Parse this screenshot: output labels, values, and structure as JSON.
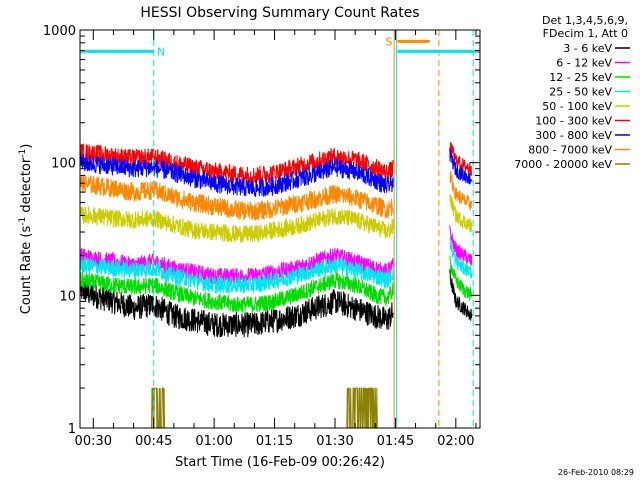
{
  "chart_data": {
    "type": "line",
    "title": "HESSI Observing Summary Count Rates",
    "xlabel": "Start Time (16-Feb-09 00:26:42)",
    "ylabel_main": "Count Rate (s",
    "ylabel_sup1": "-1",
    "ylabel_mid": " detector",
    "ylabel_sup2": "-1",
    "ylabel_end": ")",
    "y_scale": "log",
    "ylim": [
      1,
      1000
    ],
    "xlim_minutes": [
      26.7,
      126.0
    ],
    "x_ticks": [
      {
        "label": "00:30",
        "minutes": 30
      },
      {
        "label": "00:45",
        "minutes": 45
      },
      {
        "label": "01:00",
        "minutes": 60
      },
      {
        "label": "01:15",
        "minutes": 75
      },
      {
        "label": "01:30",
        "minutes": 90
      },
      {
        "label": "01:45",
        "minutes": 105
      },
      {
        "label": "02:00",
        "minutes": 120
      }
    ],
    "y_ticks": [
      {
        "label": "1",
        "value": 1
      },
      {
        "label": "10",
        "value": 10
      },
      {
        "label": "100",
        "value": 100
      },
      {
        "label": "1000",
        "value": 1000
      }
    ],
    "legend_header": [
      "Det 1,3,4,5,6,9,",
      "FDecim 1, Att 0"
    ],
    "legend_position": "top-right, outside plot",
    "series": [
      {
        "name": "3 - 6 keV",
        "color": "#000000",
        "profile": [
          [
            26.7,
            11
          ],
          [
            30,
            10
          ],
          [
            35,
            9
          ],
          [
            40,
            8
          ],
          [
            45,
            8.5
          ],
          [
            50,
            7
          ],
          [
            55,
            6.5
          ],
          [
            60,
            6
          ],
          [
            65,
            6
          ],
          [
            70,
            6
          ],
          [
            75,
            6.5
          ],
          [
            80,
            7
          ],
          [
            85,
            8
          ],
          [
            90,
            9
          ],
          [
            95,
            8
          ],
          [
            100,
            7
          ],
          [
            103,
            6.5
          ],
          [
            104.5,
            7.5
          ]
        ],
        "post": [
          [
            118.5,
            14
          ],
          [
            120,
            9
          ],
          [
            122,
            8
          ],
          [
            124,
            7
          ]
        ]
      },
      {
        "name": "6 - 12 keV",
        "color": "#ff00ff",
        "profile": [
          [
            26.7,
            20
          ],
          [
            30,
            19
          ],
          [
            35,
            18
          ],
          [
            40,
            17
          ],
          [
            45,
            18
          ],
          [
            50,
            16
          ],
          [
            55,
            15
          ],
          [
            60,
            14
          ],
          [
            65,
            14
          ],
          [
            70,
            14
          ],
          [
            75,
            15
          ],
          [
            80,
            16
          ],
          [
            85,
            18
          ],
          [
            90,
            20
          ],
          [
            95,
            18
          ],
          [
            100,
            16
          ],
          [
            103,
            15
          ],
          [
            104.5,
            17
          ]
        ],
        "post": [
          [
            118.5,
            30
          ],
          [
            120,
            22
          ],
          [
            122,
            20
          ],
          [
            124,
            18
          ]
        ]
      },
      {
        "name": "12 - 25 keV",
        "color": "#00dd00",
        "profile": [
          [
            26.7,
            13
          ],
          [
            30,
            12.5
          ],
          [
            35,
            12
          ],
          [
            40,
            11.5
          ],
          [
            45,
            12
          ],
          [
            50,
            10.5
          ],
          [
            55,
            9.5
          ],
          [
            60,
            9
          ],
          [
            65,
            8.5
          ],
          [
            70,
            8.5
          ],
          [
            75,
            9
          ],
          [
            80,
            10
          ],
          [
            85,
            11.5
          ],
          [
            90,
            13
          ],
          [
            95,
            12
          ],
          [
            100,
            10
          ],
          [
            103,
            9.5
          ],
          [
            104.5,
            11
          ]
        ],
        "post": [
          [
            118.5,
            18
          ],
          [
            120,
            13
          ],
          [
            122,
            11
          ],
          [
            124,
            10
          ]
        ]
      },
      {
        "name": "25 - 50 keV",
        "color": "#00e5ee",
        "profile": [
          [
            26.7,
            17
          ],
          [
            30,
            16.5
          ],
          [
            35,
            16
          ],
          [
            40,
            15.5
          ],
          [
            45,
            16
          ],
          [
            50,
            14
          ],
          [
            55,
            13
          ],
          [
            60,
            12
          ],
          [
            65,
            12
          ],
          [
            70,
            12
          ],
          [
            75,
            13
          ],
          [
            80,
            14
          ],
          [
            85,
            15.5
          ],
          [
            90,
            17
          ],
          [
            95,
            15.5
          ],
          [
            100,
            14
          ],
          [
            103,
            13
          ],
          [
            104.5,
            15
          ]
        ],
        "post": [
          [
            118.5,
            25
          ],
          [
            120,
            18
          ],
          [
            122,
            16
          ],
          [
            124,
            15
          ]
        ]
      },
      {
        "name": "50 - 100 keV",
        "color": "#cccc00",
        "profile": [
          [
            26.7,
            40
          ],
          [
            30,
            40
          ],
          [
            35,
            38
          ],
          [
            40,
            37
          ],
          [
            45,
            38
          ],
          [
            50,
            34
          ],
          [
            55,
            31
          ],
          [
            60,
            30
          ],
          [
            65,
            29
          ],
          [
            70,
            29
          ],
          [
            75,
            31
          ],
          [
            80,
            33
          ],
          [
            85,
            36
          ],
          [
            90,
            40
          ],
          [
            95,
            37
          ],
          [
            100,
            33
          ],
          [
            103,
            30
          ],
          [
            104.5,
            33
          ]
        ],
        "post": [
          [
            118.5,
            55
          ],
          [
            120,
            40
          ],
          [
            122,
            36
          ],
          [
            124,
            33
          ]
        ]
      },
      {
        "name": "100 - 300 keV",
        "color": "#ff0000",
        "profile": [
          [
            26.7,
            120
          ],
          [
            30,
            118
          ],
          [
            35,
            112
          ],
          [
            40,
            108
          ],
          [
            45,
            110
          ],
          [
            50,
            100
          ],
          [
            55,
            92
          ],
          [
            60,
            86
          ],
          [
            65,
            82
          ],
          [
            70,
            80
          ],
          [
            75,
            84
          ],
          [
            80,
            92
          ],
          [
            85,
            102
          ],
          [
            90,
            112
          ],
          [
            95,
            105
          ],
          [
            100,
            92
          ],
          [
            103,
            84
          ],
          [
            104.5,
            90
          ]
        ],
        "post": [
          [
            118.5,
            135
          ],
          [
            120,
            105
          ],
          [
            122,
            95
          ],
          [
            124,
            90
          ]
        ]
      },
      {
        "name": "300 - 800 keV",
        "color": "#0000ff",
        "profile": [
          [
            26.7,
            100
          ],
          [
            30,
            98
          ],
          [
            35,
            94
          ],
          [
            40,
            90
          ],
          [
            45,
            92
          ],
          [
            50,
            84
          ],
          [
            55,
            76
          ],
          [
            60,
            70
          ],
          [
            65,
            66
          ],
          [
            70,
            64
          ],
          [
            75,
            67
          ],
          [
            80,
            74
          ],
          [
            85,
            82
          ],
          [
            90,
            92
          ],
          [
            95,
            86
          ],
          [
            100,
            74
          ],
          [
            103,
            66
          ],
          [
            104.5,
            72
          ]
        ],
        "post": [
          [
            118.5,
            115
          ],
          [
            120,
            88
          ],
          [
            122,
            80
          ],
          [
            124,
            75
          ]
        ]
      },
      {
        "name": "800 - 7000 keV",
        "color": "#ff8800",
        "profile": [
          [
            26.7,
            70
          ],
          [
            30,
            68
          ],
          [
            35,
            64
          ],
          [
            40,
            60
          ],
          [
            45,
            62
          ],
          [
            50,
            55
          ],
          [
            55,
            50
          ],
          [
            60,
            47
          ],
          [
            65,
            44
          ],
          [
            70,
            43
          ],
          [
            75,
            45
          ],
          [
            80,
            49
          ],
          [
            85,
            53
          ],
          [
            90,
            58
          ],
          [
            95,
            54
          ],
          [
            100,
            48
          ],
          [
            103,
            44
          ],
          [
            104.5,
            48
          ]
        ],
        "post": [
          [
            118.5,
            80
          ],
          [
            120,
            58
          ],
          [
            122,
            52
          ],
          [
            124,
            48
          ]
        ]
      },
      {
        "name": "7000 - 20000 keV",
        "color": "#8b8000",
        "profile": [
          [
            26.7,
            1
          ],
          [
            44.5,
            1
          ],
          [
            45,
            1.8
          ],
          [
            46,
            2
          ],
          [
            47,
            1.5
          ],
          [
            48,
            1
          ],
          [
            93,
            1
          ],
          [
            93.5,
            1.9
          ],
          [
            100,
            2
          ],
          [
            100.5,
            1
          ],
          [
            126,
            1
          ]
        ],
        "post": []
      }
    ],
    "overlays": [
      {
        "kind": "bar",
        "label": "",
        "color": "#00e5ee",
        "x0": 26.7,
        "x1": 45,
        "y": 690
      },
      {
        "kind": "bar",
        "label": "",
        "color": "#00e5ee",
        "x0": 105.5,
        "x1": 126,
        "y": 690
      },
      {
        "kind": "bar",
        "label": "",
        "color": "#ff8800",
        "x0": 105.5,
        "x1": 113.5,
        "y": 820
      },
      {
        "kind": "text",
        "label": "N",
        "color": "#00e5ee",
        "x": 45.8,
        "y": 690
      },
      {
        "kind": "text",
        "label": "S",
        "color": "#ff8800",
        "x": 102.5,
        "y": 820
      }
    ],
    "vlines": [
      {
        "x": 45,
        "color": "#00e5ee",
        "dash": true
      },
      {
        "x": 104.7,
        "color": "#ff8800",
        "dash": false
      },
      {
        "x": 105.3,
        "color": "#00e5ee",
        "dash": false
      },
      {
        "x": 115.8,
        "color": "#ff8800",
        "dash": true
      },
      {
        "x": 124.3,
        "color": "#00e5ee",
        "dash": true
      }
    ],
    "timestamp": "26-Feb-2010 08:29"
  }
}
